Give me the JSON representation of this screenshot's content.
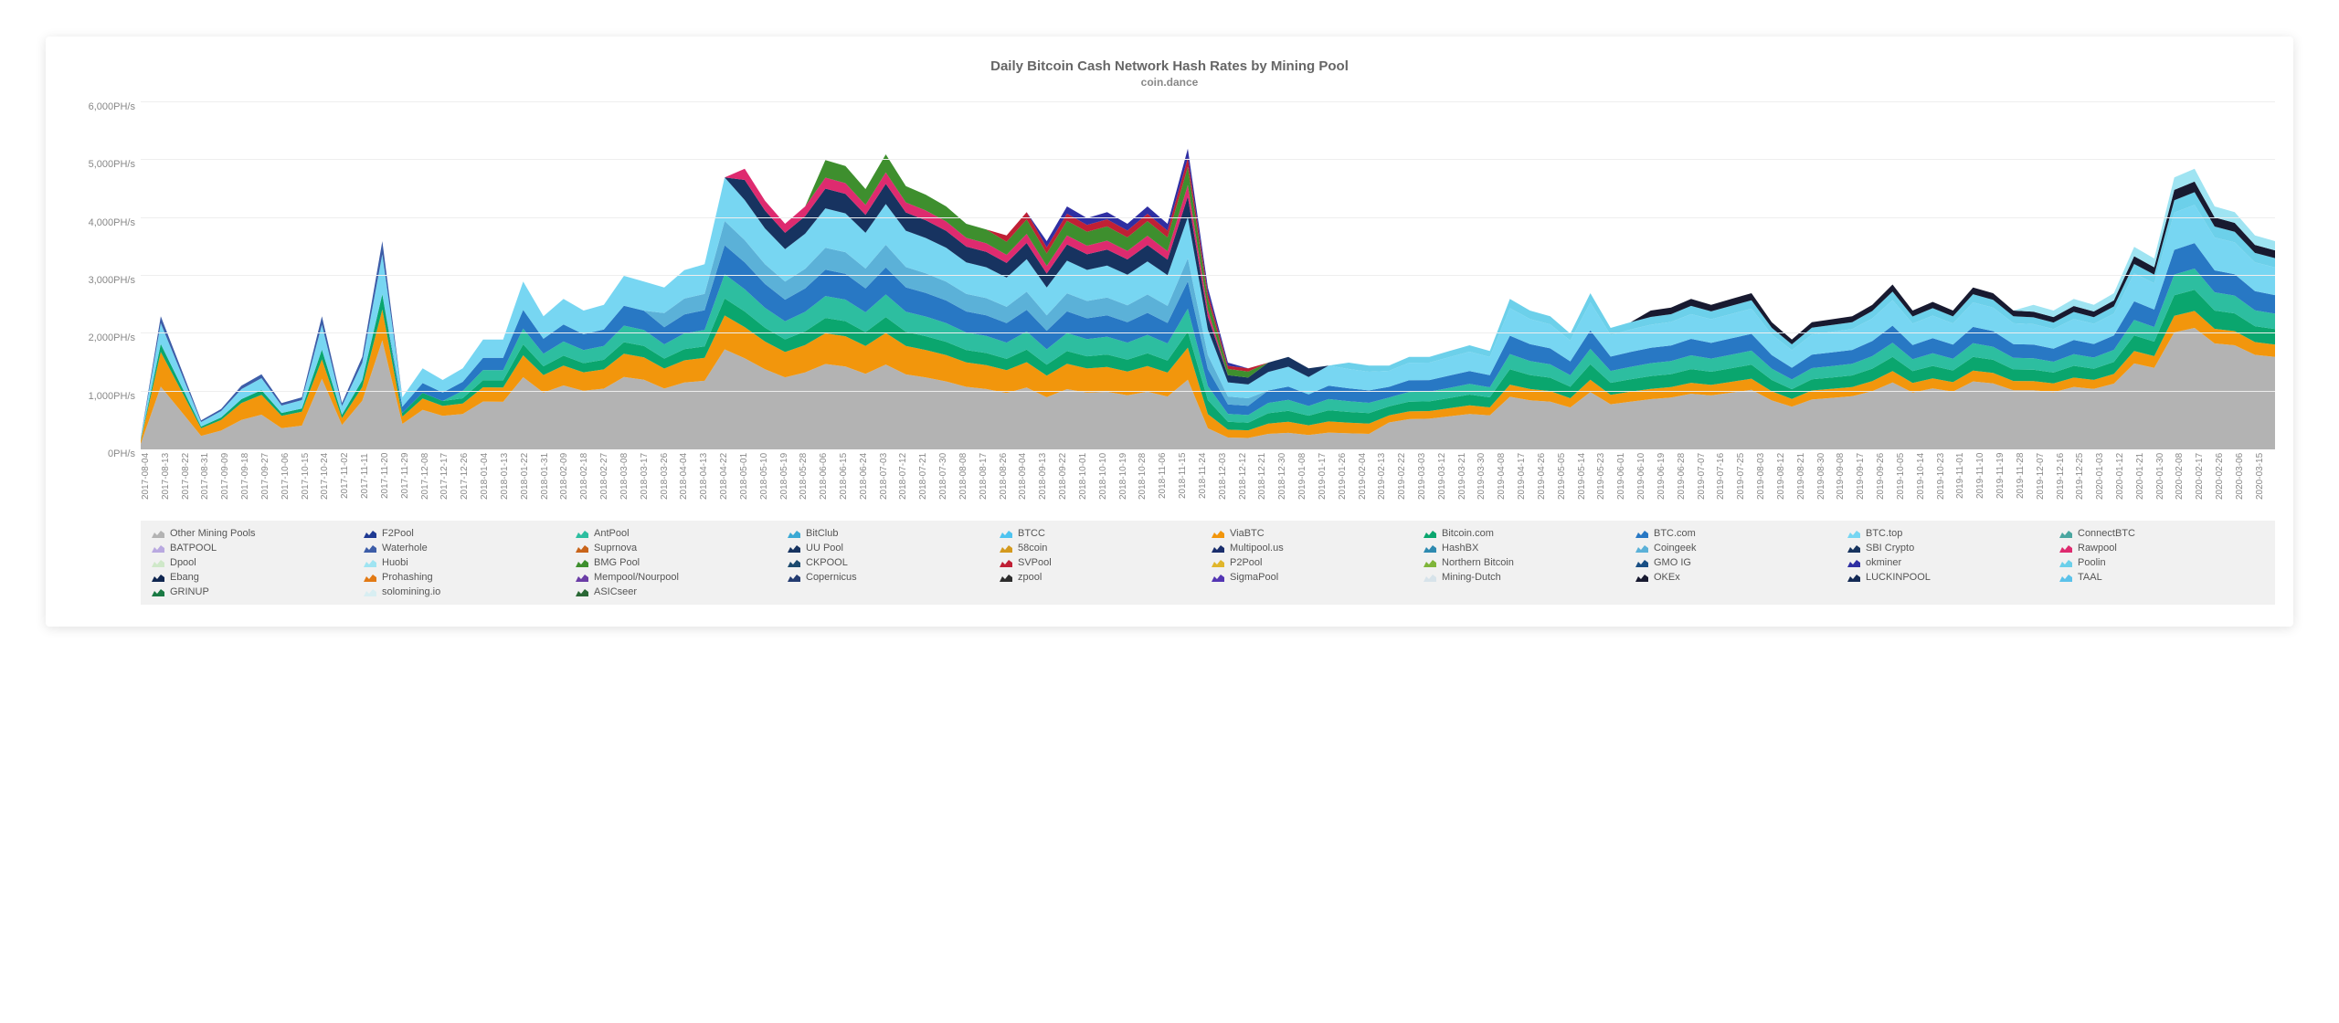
{
  "chart": {
    "type": "stacked-area",
    "title": "Daily Bitcoin Cash Network Hash Rates by Mining Pool",
    "subtitle": "coin.dance",
    "title_fontsize": 15,
    "subtitle_fontsize": 12,
    "title_color": "#666666",
    "background_color": "#ffffff",
    "card_shadow": "0 2px 12px rgba(0,0,0,0.12)",
    "grid_color": "#eeeeee",
    "axis_color": "#dddddd",
    "tick_font_color": "#888888",
    "label_fontsize": 11,
    "ylim": [
      0,
      6000
    ],
    "ytick_step": 1000,
    "y_unit": "PH/s",
    "y_ticks": [
      "0PH/s",
      "1,000PH/s",
      "2,000PH/s",
      "3,000PH/s",
      "4,000PH/s",
      "5,000PH/s",
      "6,000PH/s"
    ],
    "x_labels": [
      "2017-08-04",
      "2017-08-13",
      "2017-08-22",
      "2017-08-31",
      "2017-09-09",
      "2017-09-18",
      "2017-09-27",
      "2017-10-06",
      "2017-10-15",
      "2017-10-24",
      "2017-11-02",
      "2017-11-11",
      "2017-11-20",
      "2017-11-29",
      "2017-12-08",
      "2017-12-17",
      "2017-12-26",
      "2018-01-04",
      "2018-01-13",
      "2018-01-22",
      "2018-01-31",
      "2018-02-09",
      "2018-02-18",
      "2018-02-27",
      "2018-03-08",
      "2018-03-17",
      "2018-03-26",
      "2018-04-04",
      "2018-04-13",
      "2018-04-22",
      "2018-05-01",
      "2018-05-10",
      "2018-05-19",
      "2018-05-28",
      "2018-06-06",
      "2018-06-15",
      "2018-06-24",
      "2018-07-03",
      "2018-07-12",
      "2018-07-21",
      "2018-07-30",
      "2018-08-08",
      "2018-08-17",
      "2018-08-26",
      "2018-09-04",
      "2018-09-13",
      "2018-09-22",
      "2018-10-01",
      "2018-10-10",
      "2018-10-19",
      "2018-10-28",
      "2018-11-06",
      "2018-11-15",
      "2018-11-24",
      "2018-12-03",
      "2018-12-12",
      "2018-12-21",
      "2018-12-30",
      "2019-01-08",
      "2019-01-17",
      "2019-01-26",
      "2019-02-04",
      "2019-02-13",
      "2019-02-22",
      "2019-03-03",
      "2019-03-12",
      "2019-03-21",
      "2019-03-30",
      "2019-04-08",
      "2019-04-17",
      "2019-04-26",
      "2019-05-05",
      "2019-05-14",
      "2019-05-23",
      "2019-06-01",
      "2019-06-10",
      "2019-06-19",
      "2019-06-28",
      "2019-07-07",
      "2019-07-16",
      "2019-07-25",
      "2019-08-03",
      "2019-08-12",
      "2019-08-21",
      "2019-08-30",
      "2019-09-08",
      "2019-09-17",
      "2019-09-26",
      "2019-10-05",
      "2019-10-14",
      "2019-10-23",
      "2019-11-01",
      "2019-11-10",
      "2019-11-19",
      "2019-11-28",
      "2019-12-07",
      "2019-12-16",
      "2019-12-25",
      "2020-01-03",
      "2020-01-12",
      "2020-01-21",
      "2020-01-30",
      "2020-02-08",
      "2020-02-17",
      "2020-02-26",
      "2020-03-06",
      "2020-03-15"
    ],
    "series": [
      {
        "name": "Other Mining Pools",
        "color": "#b3b3b3"
      },
      {
        "name": "F2Pool",
        "color": "#1f3a93"
      },
      {
        "name": "AntPool",
        "color": "#2dbea0"
      },
      {
        "name": "BitClub",
        "color": "#3ba9d4"
      },
      {
        "name": "BTCC",
        "color": "#4fc4f0"
      },
      {
        "name": "ViaBTC",
        "color": "#f2960c"
      },
      {
        "name": "Bitcoin.com",
        "color": "#0aa66e"
      },
      {
        "name": "BTC.com",
        "color": "#2878c4"
      },
      {
        "name": "BTC.top",
        "color": "#77d6f2"
      },
      {
        "name": "ConnectBTC",
        "color": "#4aa6a0"
      },
      {
        "name": "BATPOOL",
        "color": "#b9a9e0"
      },
      {
        "name": "Waterhole",
        "color": "#3d5da8"
      },
      {
        "name": "Suprnova",
        "color": "#c9641a"
      },
      {
        "name": "UU Pool",
        "color": "#173360"
      },
      {
        "name": "58coin",
        "color": "#d49a1e"
      },
      {
        "name": "Multipool.us",
        "color": "#1b2f6d"
      },
      {
        "name": "HashBX",
        "color": "#2e8ab0"
      },
      {
        "name": "Coingeek",
        "color": "#5bb1d8"
      },
      {
        "name": "SBI Crypto",
        "color": "#17335e"
      },
      {
        "name": "Rawpool",
        "color": "#de2b6f"
      },
      {
        "name": "Dpool",
        "color": "#cfe8c9"
      },
      {
        "name": "Huobi",
        "color": "#9fe4f2"
      },
      {
        "name": "BMG Pool",
        "color": "#3e8f2e"
      },
      {
        "name": "CKPOOL",
        "color": "#1c4a6e"
      },
      {
        "name": "SVPool",
        "color": "#c02035"
      },
      {
        "name": "P2Pool",
        "color": "#e0b62c"
      },
      {
        "name": "Northern Bitcoin",
        "color": "#7fb53a"
      },
      {
        "name": "GMO IG",
        "color": "#194f84"
      },
      {
        "name": "okminer",
        "color": "#2f2fa3"
      },
      {
        "name": "Poolin",
        "color": "#6cd0ea"
      },
      {
        "name": "Ebang",
        "color": "#102650"
      },
      {
        "name": "Prohashing",
        "color": "#e27a15"
      },
      {
        "name": "Mempool/Nourpool",
        "color": "#6b3da6"
      },
      {
        "name": "Copernicus",
        "color": "#233b70"
      },
      {
        "name": "zpool",
        "color": "#2d2d2d"
      },
      {
        "name": "SigmaPool",
        "color": "#5436b3"
      },
      {
        "name": "Mining-Dutch",
        "color": "#d7e3ea"
      },
      {
        "name": "OKEx",
        "color": "#181a30"
      },
      {
        "name": "LUCKINPOOL",
        "color": "#142a55"
      },
      {
        "name": "TAAL",
        "color": "#5bc2ea"
      },
      {
        "name": "GRINUP",
        "color": "#1a7a44"
      },
      {
        "name": "solomining.io",
        "color": "#d8eef2"
      },
      {
        "name": "ASICseer",
        "color": "#2a6835"
      }
    ],
    "totals_approx": [
      200,
      2300,
      1400,
      500,
      700,
      1100,
      1300,
      800,
      900,
      2300,
      800,
      1600,
      3600,
      900,
      1400,
      1200,
      1400,
      1900,
      1900,
      2900,
      2300,
      2600,
      2400,
      2500,
      3000,
      2900,
      2800,
      3100,
      3200,
      4700,
      4850,
      4300,
      3900,
      4200,
      5000,
      4900,
      4500,
      5100,
      4550,
      4400,
      4200,
      3900,
      3800,
      3700,
      4100,
      3600,
      4200,
      4000,
      4100,
      3900,
      4200,
      3900,
      5200,
      2800,
      1500,
      1400,
      1500,
      1600,
      1400,
      1450,
      1500,
      1450,
      1450,
      1600,
      1600,
      1700,
      1800,
      1700,
      2600,
      2400,
      2300,
      2000,
      2700,
      2100,
      2200,
      2400,
      2450,
      2600,
      2500,
      2600,
      2700,
      2200,
      1900,
      2200,
      2250,
      2300,
      2500,
      2850,
      2400,
      2550,
      2400,
      2800,
      2700,
      2400,
      2500,
      2400,
      2600,
      2500,
      2700,
      3500,
      3300,
      4700,
      4850,
      4200,
      4100,
      3700,
      3600
    ]
  }
}
